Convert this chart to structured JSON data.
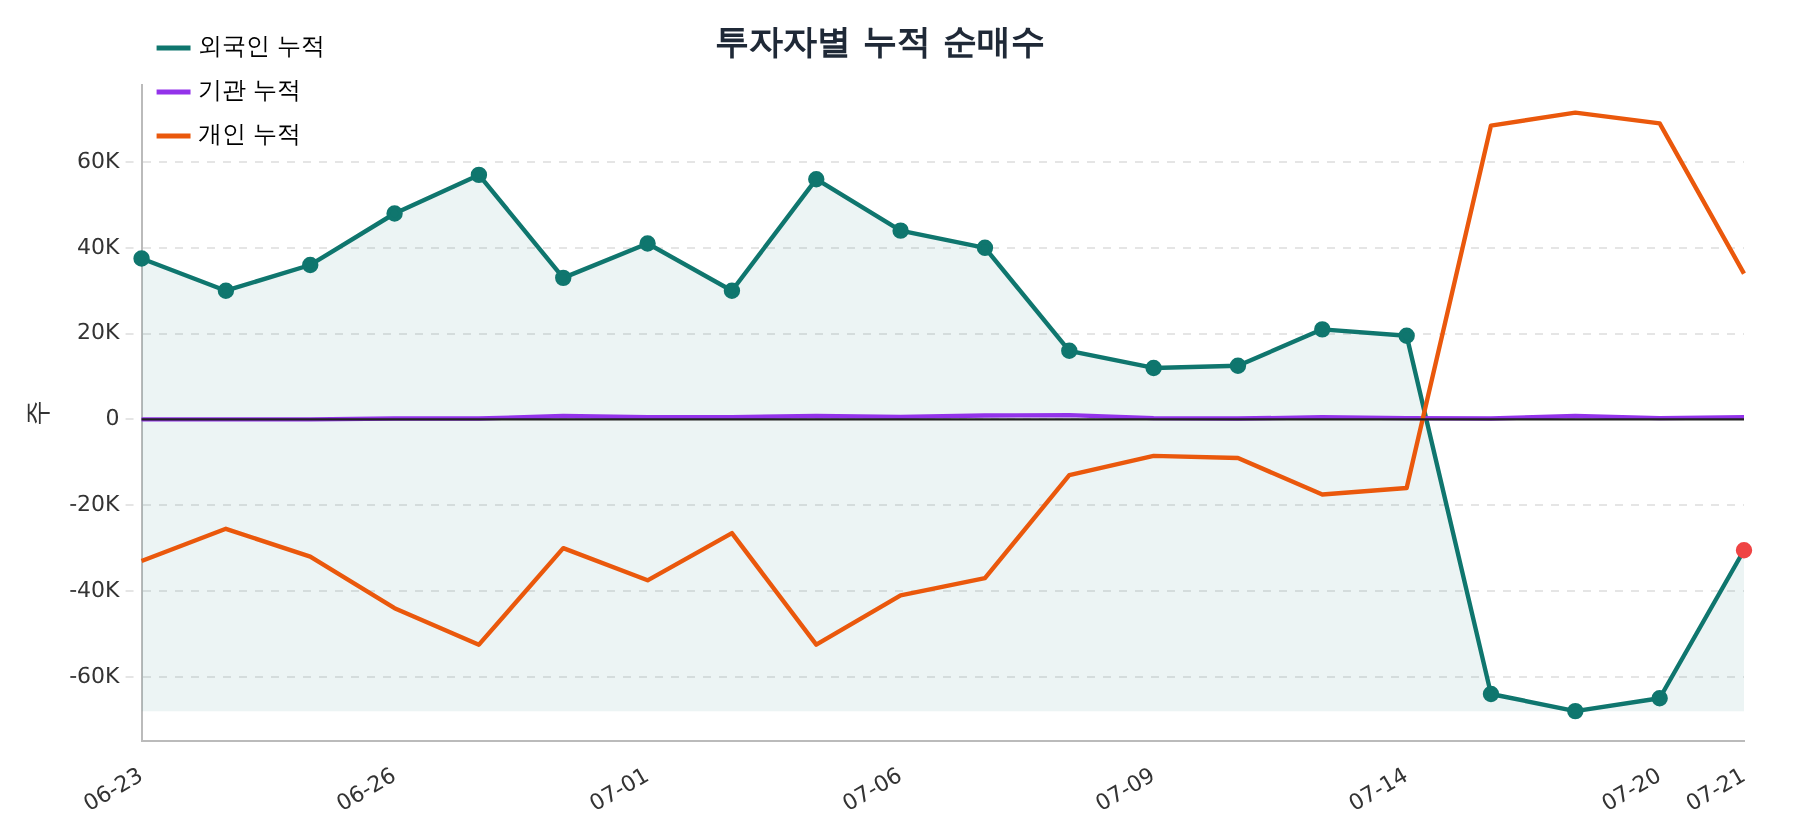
{
  "chart_data": {
    "type": "line",
    "title": "투자자별 누적 순매수",
    "ylabel": "주",
    "categories": [
      "06-23",
      null,
      null,
      "06-26",
      null,
      null,
      "07-01",
      null,
      null,
      "07-06",
      null,
      null,
      "07-09",
      null,
      null,
      "07-14",
      null,
      null,
      "07-20",
      "07-21"
    ],
    "series": [
      {
        "name": "외국인 누적",
        "color": "#0f766e",
        "marker": "circle",
        "colors": [
          "#0f766e",
          "#0f766e",
          "#0f766e",
          "#0f766e",
          "#0f766e",
          "#0f766e",
          "#0f766e",
          "#0f766e",
          "#0f766e",
          "#0f766e",
          "#0f766e",
          "#0f766e",
          "#0f766e",
          "#0f766e",
          "#0f766e",
          "#0f766e",
          "#0f766e",
          "#0f766e",
          "#0f766e",
          "#ef4444"
        ],
        "values": [
          37500,
          30000,
          36000,
          48000,
          57000,
          33000,
          41000,
          30000,
          56000,
          44000,
          40000,
          16000,
          12000,
          12500,
          21000,
          19500,
          -64000,
          -68000,
          -65000,
          -30500
        ]
      },
      {
        "name": "기관 누적",
        "color": "#9333ea",
        "marker": "none",
        "values": [
          0,
          0,
          0,
          200,
          200,
          800,
          500,
          500,
          800,
          600,
          900,
          1000,
          300,
          200,
          500,
          300,
          200,
          800,
          300,
          500
        ]
      },
      {
        "name": "개인 누적",
        "color": "#ea580c",
        "marker": "none",
        "values": [
          -33000,
          -25500,
          -32000,
          -44000,
          -52500,
          -30000,
          -37500,
          -26500,
          -52500,
          -41000,
          -37000,
          -13000,
          -8500,
          -9000,
          -17500,
          -16000,
          68500,
          71500,
          69000,
          34000
        ]
      }
    ],
    "ylim": [
      -75000,
      78000
    ],
    "yticks": [
      {
        "value": -60000,
        "label": "-60K"
      },
      {
        "value": -40000,
        "label": "-40K"
      },
      {
        "value": -20000,
        "label": "-20K"
      },
      0,
      {
        "value": 20000,
        "label": "20K"
      },
      {
        "value": 40000,
        "label": "40K"
      },
      {
        "value": 60000,
        "label": "60K"
      }
    ],
    "ref_lines": [
      {
        "axis": "y",
        "value": 0,
        "color": "#222222"
      }
    ],
    "grid": "y",
    "legend": "top left"
  }
}
